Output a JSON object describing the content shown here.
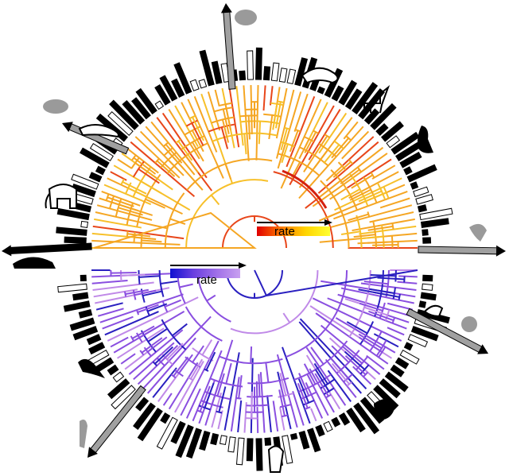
{
  "legend": {
    "top_label": "rate",
    "bottom_label": "rate",
    "top_gradient": [
      "#e00000",
      "#ff7a00",
      "#ffd400",
      "#ffff30"
    ],
    "bottom_gradient": [
      "#1010d0",
      "#6a3fe0",
      "#a070e8",
      "#c8a0f0"
    ]
  },
  "colors": {
    "mammal_branch_base": "#f5a623",
    "mammal_branch_mid": "#f7c02a",
    "mammal_branch_hot": "#e8461a",
    "bird_branch_base": "#8a4fe0",
    "bird_branch_dark": "#2a20c0",
    "bird_branch_light": "#c08ae8",
    "bar_fill": "#000000",
    "bar_open": "#ffffff",
    "arrow_grey": "#a0a0a0"
  },
  "icons": {
    "top": [
      "hedgehog-silhouette",
      "dolphin-outline",
      "goat-outline",
      "meerkat-silhouette",
      "rat-silhouette",
      "ferret-outline",
      "elephant-outline",
      "armadillo-silhouette",
      "weasel-silhouette"
    ],
    "bottom": [
      "duck-silhouette",
      "chicken-silhouette",
      "owl-silhouette",
      "penguin-outline",
      "songbird-silhouette",
      "parrot-silhouette",
      "heron-outline"
    ]
  }
}
